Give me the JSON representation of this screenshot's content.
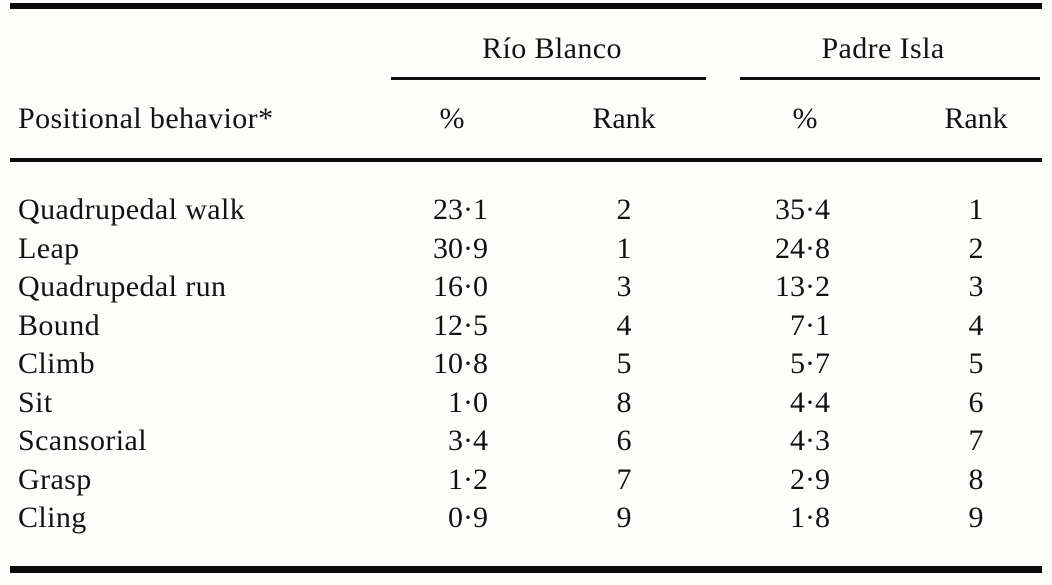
{
  "colors": {
    "ink": "#0c0c0c",
    "paper": "#fdfdfc"
  },
  "table": {
    "row_header": "Positional behavior*",
    "groups": [
      {
        "label": "Río Blanco",
        "cols": [
          "%",
          "Rank"
        ]
      },
      {
        "label": "Padre Isla",
        "cols": [
          "%",
          "Rank"
        ]
      }
    ],
    "rows": [
      {
        "behavior": "Quadrupedal walk",
        "rb_pct": "23·1",
        "rb_rank": "2",
        "pi_pct": "35·4",
        "pi_rank": "1"
      },
      {
        "behavior": "Leap",
        "rb_pct": "30·9",
        "rb_rank": "1",
        "pi_pct": "24·8",
        "pi_rank": "2"
      },
      {
        "behavior": "Quadrupedal run",
        "rb_pct": "16·0",
        "rb_rank": "3",
        "pi_pct": "13·2",
        "pi_rank": "3"
      },
      {
        "behavior": "Bound",
        "rb_pct": "12·5",
        "rb_rank": "4",
        "pi_pct": "7·1",
        "pi_rank": "4"
      },
      {
        "behavior": "Climb",
        "rb_pct": "10·8",
        "rb_rank": "5",
        "pi_pct": "5·7",
        "pi_rank": "5"
      },
      {
        "behavior": "Sit",
        "rb_pct": "1·0",
        "rb_rank": "8",
        "pi_pct": "4·4",
        "pi_rank": "6"
      },
      {
        "behavior": "Scansorial",
        "rb_pct": "3·4",
        "rb_rank": "6",
        "pi_pct": "4·3",
        "pi_rank": "7"
      },
      {
        "behavior": "Grasp",
        "rb_pct": "1·2",
        "rb_rank": "7",
        "pi_pct": "2·9",
        "pi_rank": "8"
      },
      {
        "behavior": "Cling",
        "rb_pct": "0·9",
        "rb_rank": "9",
        "pi_pct": "1·8",
        "pi_rank": "9"
      }
    ]
  }
}
